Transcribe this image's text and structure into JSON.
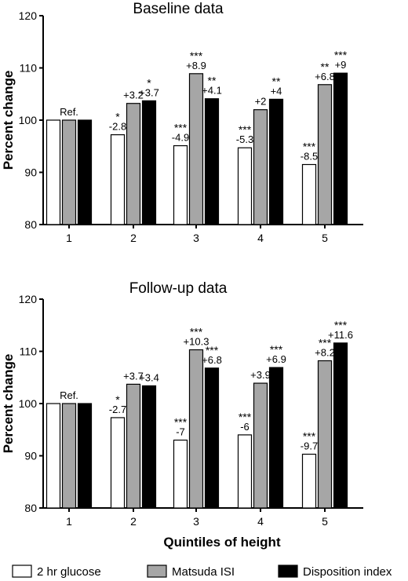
{
  "xlabel": "Quintiles of height",
  "legend": [
    {
      "label": "2 hr glucose",
      "color": "#ffffff"
    },
    {
      "label": "Matsuda ISI",
      "color": "#a6a6a6"
    },
    {
      "label": "Disposition index",
      "color": "#000000"
    }
  ],
  "chart_data": [
    {
      "type": "bar",
      "title": "Baseline data",
      "ylabel": "Percent change",
      "xlabel": "",
      "ylim": [
        80,
        120
      ],
      "yticks": [
        80,
        90,
        100,
        110,
        120
      ],
      "categories": [
        "1",
        "2",
        "3",
        "4",
        "5"
      ],
      "series": [
        {
          "name": "2 hr glucose",
          "values": [
            100,
            97.2,
            95.1,
            94.7,
            91.5
          ],
          "labels": [
            "Ref.",
            "-2.8",
            "-4.9",
            "-5.3",
            "-8.5"
          ],
          "stars": [
            "",
            "*",
            "***",
            "***",
            "***"
          ]
        },
        {
          "name": "Matsuda ISI",
          "values": [
            100,
            103.2,
            108.9,
            102,
            106.8
          ],
          "labels": [
            "",
            "+3.2",
            "+8.9",
            "+2",
            "+6.8"
          ],
          "stars": [
            "",
            "",
            "***",
            "",
            "**"
          ]
        },
        {
          "name": "Disposition index",
          "values": [
            100,
            103.7,
            104.1,
            104,
            109
          ],
          "labels": [
            "",
            "+3.7",
            "+4.1",
            "+4",
            "+9"
          ],
          "stars": [
            "",
            "*",
            "**",
            "**",
            "***"
          ]
        }
      ]
    },
    {
      "type": "bar",
      "title": "Follow-up data",
      "ylabel": "Percent change",
      "xlabel": "Quintiles of height",
      "ylim": [
        80,
        120
      ],
      "yticks": [
        80,
        90,
        100,
        110,
        120
      ],
      "categories": [
        "1",
        "2",
        "3",
        "4",
        "5"
      ],
      "series": [
        {
          "name": "2 hr glucose",
          "values": [
            100,
            97.3,
            93,
            94,
            90.3
          ],
          "labels": [
            "Ref.",
            "-2.7",
            "-7",
            "-6",
            "-9.7"
          ],
          "stars": [
            "",
            "*",
            "***",
            "***",
            "***"
          ]
        },
        {
          "name": "Matsuda ISI",
          "values": [
            100,
            103.7,
            110.3,
            103.9,
            108.2
          ],
          "labels": [
            "",
            "+3.7",
            "+10.3",
            "+3.9",
            "+8.2"
          ],
          "stars": [
            "",
            "",
            "***",
            "",
            "***"
          ]
        },
        {
          "name": "Disposition index",
          "values": [
            100,
            103.4,
            106.8,
            106.9,
            111.6
          ],
          "labels": [
            "",
            "+3.4",
            "+6.8",
            "+6.9",
            "+11.6"
          ],
          "stars": [
            "",
            "",
            "***",
            "***",
            "***"
          ]
        }
      ]
    }
  ]
}
